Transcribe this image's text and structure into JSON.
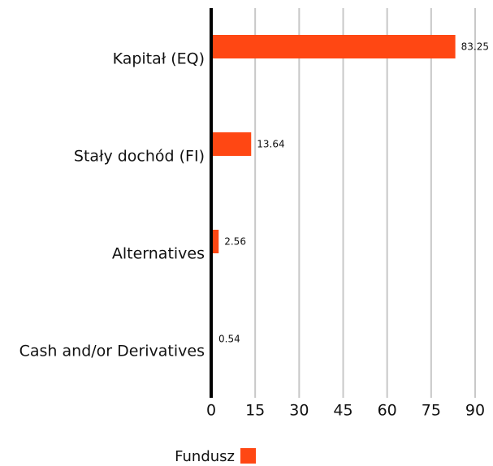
{
  "chart_data": {
    "type": "bar",
    "orientation": "horizontal",
    "categories": [
      "Kapitał (EQ)",
      "Stały dochód (FI)",
      "Alternatives",
      "Cash and/or Derivatives"
    ],
    "series": [
      {
        "name": "Fundusz",
        "color": "#ff4713",
        "values": [
          83.25,
          13.64,
          2.56,
          0.54
        ]
      }
    ],
    "xlim": [
      0,
      90
    ],
    "xticks": [
      0,
      15,
      30,
      45,
      60,
      75,
      90
    ],
    "grid": true,
    "legend": "bottom"
  }
}
